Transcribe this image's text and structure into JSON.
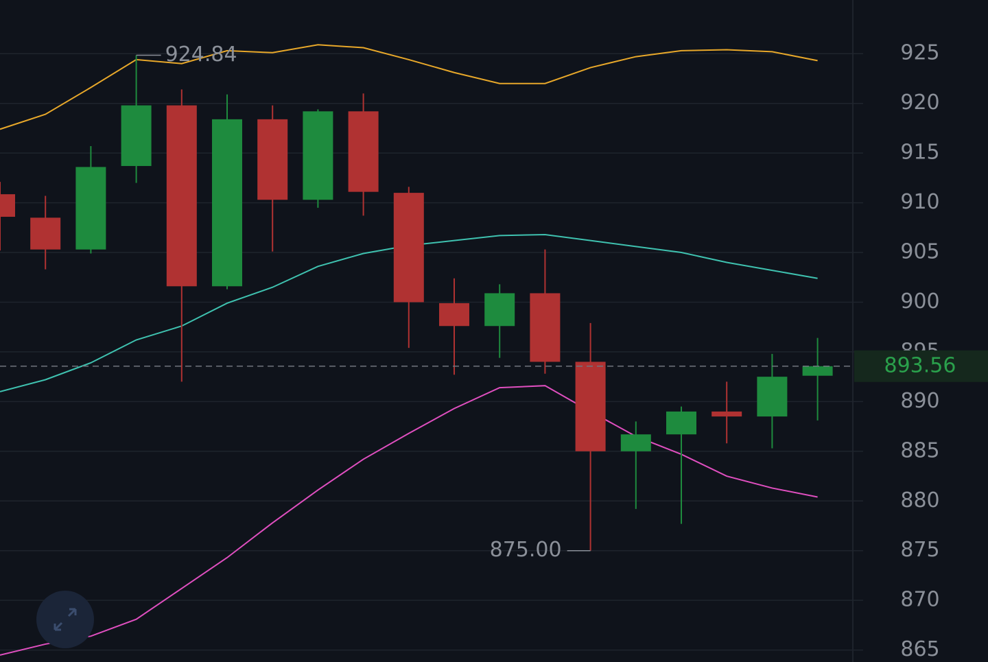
{
  "chart_data": {
    "type": "candlestick",
    "open": [
      910.86,
      908.5,
      905.3,
      913.7,
      919.8,
      901.6,
      918.4,
      910.3,
      919.2,
      911.0,
      899.9,
      897.6,
      900.9,
      894.0,
      885.0,
      886.7,
      889.0,
      888.5,
      892.6
    ],
    "high": [
      912.1,
      910.7,
      915.7,
      924.84,
      921.4,
      920.9,
      919.8,
      919.4,
      921.0,
      911.6,
      902.4,
      901.8,
      905.3,
      897.9,
      888.0,
      889.5,
      892.0,
      894.8,
      896.4
    ],
    "low": [
      905.2,
      903.3,
      904.9,
      912.0,
      892.0,
      901.3,
      905.1,
      909.5,
      908.7,
      895.4,
      892.7,
      894.4,
      892.8,
      875.0,
      879.2,
      877.7,
      885.8,
      885.3,
      888.1
    ],
    "close": [
      908.59,
      905.3,
      913.6,
      919.8,
      901.6,
      918.4,
      910.3,
      919.2,
      911.1,
      900.0,
      897.6,
      900.9,
      894.0,
      885.0,
      886.7,
      889.0,
      888.5,
      892.5,
      893.56
    ],
    "up_color": "#1e8b3e",
    "down_color": "#b03232",
    "series": [
      {
        "color": "#e8a82a",
        "values": [
          917.4,
          918.9,
          921.6,
          924.4,
          924.0,
          925.3,
          925.1,
          925.9,
          925.6,
          924.4,
          923.1,
          922.0,
          922.0,
          923.6,
          924.7,
          925.3,
          925.4,
          925.2,
          924.3
        ]
      },
      {
        "color": "#3fc2b0",
        "values": [
          891.0,
          892.2,
          893.9,
          896.2,
          897.6,
          899.9,
          901.5,
          903.6,
          904.9,
          905.7,
          906.2,
          906.7,
          906.8,
          906.2,
          905.6,
          905.0,
          904.0,
          903.2,
          902.4
        ]
      },
      {
        "color": "#e04fc0",
        "values": [
          864.5,
          865.6,
          866.4,
          868.1,
          871.2,
          874.3,
          877.8,
          881.1,
          884.2,
          886.8,
          889.3,
          891.4,
          891.6,
          889.0,
          886.5,
          884.7,
          882.5,
          881.3,
          880.4
        ]
      }
    ],
    "high_label": "924.84",
    "low_label": "875.00",
    "last_price": 893.56,
    "ylim": [
      863.8,
      930.4
    ],
    "yticks": [
      865,
      870,
      875,
      880,
      885,
      890,
      895,
      900,
      905,
      910,
      915,
      920,
      925
    ],
    "grid": true
  }
}
